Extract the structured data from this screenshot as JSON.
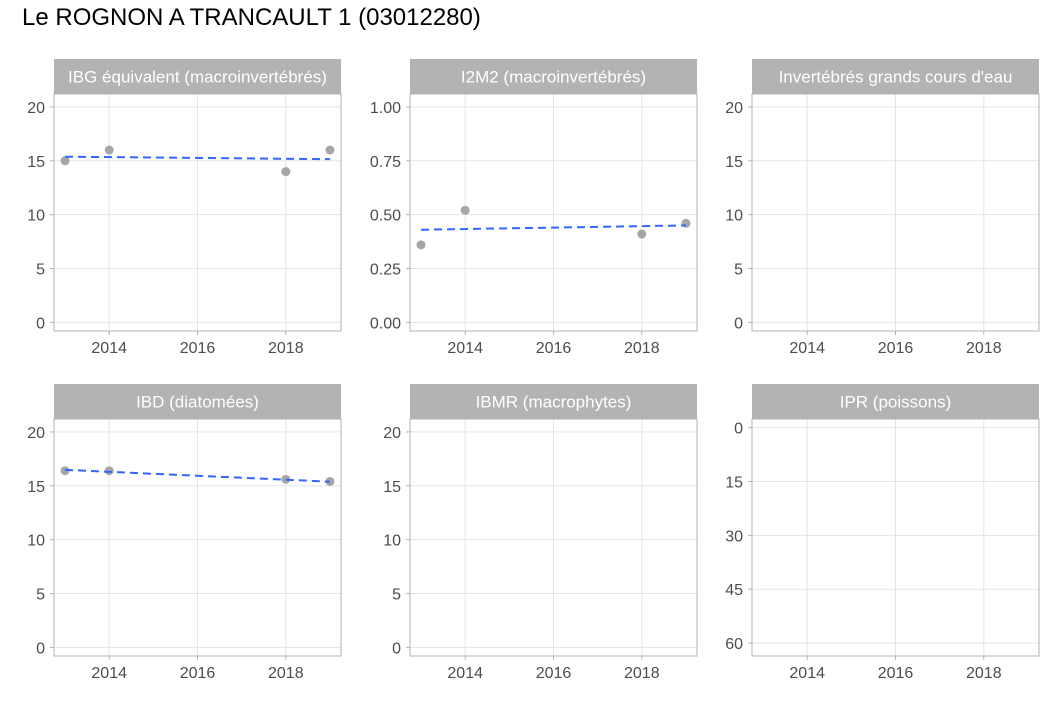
{
  "title": "Le ROGNON A TRANCAULT 1 (03012280)",
  "colors": {
    "strip": "#b3b3b3",
    "strip_text": "#ffffff",
    "grid": "#e5e5e5",
    "border": "#b3b3b3",
    "point": "#a6a6a6",
    "trend": "#3366ff",
    "tick_text": "#4d4d4d"
  },
  "chart_data": [
    {
      "type": "scatter",
      "title": "IBG équivalent (macroinvertébrés)",
      "xlim": [
        2012.75,
        2019.25
      ],
      "x_ticks": [
        2014,
        2016,
        2018
      ],
      "ylim": [
        -0.8,
        21.2
      ],
      "y_ticks": [
        0,
        5,
        10,
        15,
        20
      ],
      "y_tick_labels": [
        "0",
        "5",
        "10",
        "15",
        "20"
      ],
      "y_reversed": false,
      "points": [
        {
          "x": 2013,
          "y": 15
        },
        {
          "x": 2014,
          "y": 16
        },
        {
          "x": 2018,
          "y": 14
        },
        {
          "x": 2019,
          "y": 16
        }
      ],
      "trend": {
        "x": [
          2013,
          2019
        ],
        "y": [
          15.38,
          15.15
        ]
      }
    },
    {
      "type": "scatter",
      "title": "I2M2 (macroinvertébrés)",
      "xlim": [
        2012.75,
        2019.25
      ],
      "x_ticks": [
        2014,
        2016,
        2018
      ],
      "ylim": [
        -0.04,
        1.06
      ],
      "y_ticks": [
        0,
        0.25,
        0.5,
        0.75,
        1
      ],
      "y_tick_labels": [
        "0.00",
        "0.25",
        "0.50",
        "0.75",
        "1.00"
      ],
      "y_reversed": false,
      "points": [
        {
          "x": 2013,
          "y": 0.36
        },
        {
          "x": 2014,
          "y": 0.52
        },
        {
          "x": 2018,
          "y": 0.41
        },
        {
          "x": 2019,
          "y": 0.46
        }
      ],
      "trend": {
        "x": [
          2013,
          2019
        ],
        "y": [
          0.43,
          0.45
        ]
      }
    },
    {
      "type": "scatter",
      "title": "Invertébrés grands cours d'eau",
      "xlim": [
        2012.75,
        2019.25
      ],
      "x_ticks": [
        2014,
        2016,
        2018
      ],
      "ylim": [
        -0.8,
        21.2
      ],
      "y_ticks": [
        0,
        5,
        10,
        15,
        20
      ],
      "y_tick_labels": [
        "0",
        "5",
        "10",
        "15",
        "20"
      ],
      "y_reversed": false,
      "points": [],
      "trend": null
    },
    {
      "type": "scatter",
      "title": "IBD (diatomées)",
      "xlim": [
        2012.75,
        2019.25
      ],
      "x_ticks": [
        2014,
        2016,
        2018
      ],
      "ylim": [
        -0.8,
        21.2
      ],
      "y_ticks": [
        0,
        5,
        10,
        15,
        20
      ],
      "y_tick_labels": [
        "0",
        "5",
        "10",
        "15",
        "20"
      ],
      "y_reversed": false,
      "points": [
        {
          "x": 2013,
          "y": 16.4
        },
        {
          "x": 2014,
          "y": 16.4
        },
        {
          "x": 2018,
          "y": 15.6
        },
        {
          "x": 2019,
          "y": 15.4
        }
      ],
      "trend": {
        "x": [
          2013,
          2019
        ],
        "y": [
          16.48,
          15.38
        ]
      }
    },
    {
      "type": "scatter",
      "title": "IBMR (macrophytes)",
      "xlim": [
        2012.75,
        2019.25
      ],
      "x_ticks": [
        2014,
        2016,
        2018
      ],
      "ylim": [
        -0.8,
        21.2
      ],
      "y_ticks": [
        0,
        5,
        10,
        15,
        20
      ],
      "y_tick_labels": [
        "0",
        "5",
        "10",
        "15",
        "20"
      ],
      "y_reversed": false,
      "points": [],
      "trend": null
    },
    {
      "type": "scatter",
      "title": "IPR (poissons)",
      "xlim": [
        2012.75,
        2019.25
      ],
      "x_ticks": [
        2014,
        2016,
        2018
      ],
      "ylim": [
        -2.4,
        63.6
      ],
      "y_ticks": [
        0,
        15,
        30,
        45,
        60
      ],
      "y_tick_labels": [
        "0",
        "15",
        "30",
        "45",
        "60"
      ],
      "y_reversed": true,
      "points": [],
      "trend": null
    }
  ]
}
